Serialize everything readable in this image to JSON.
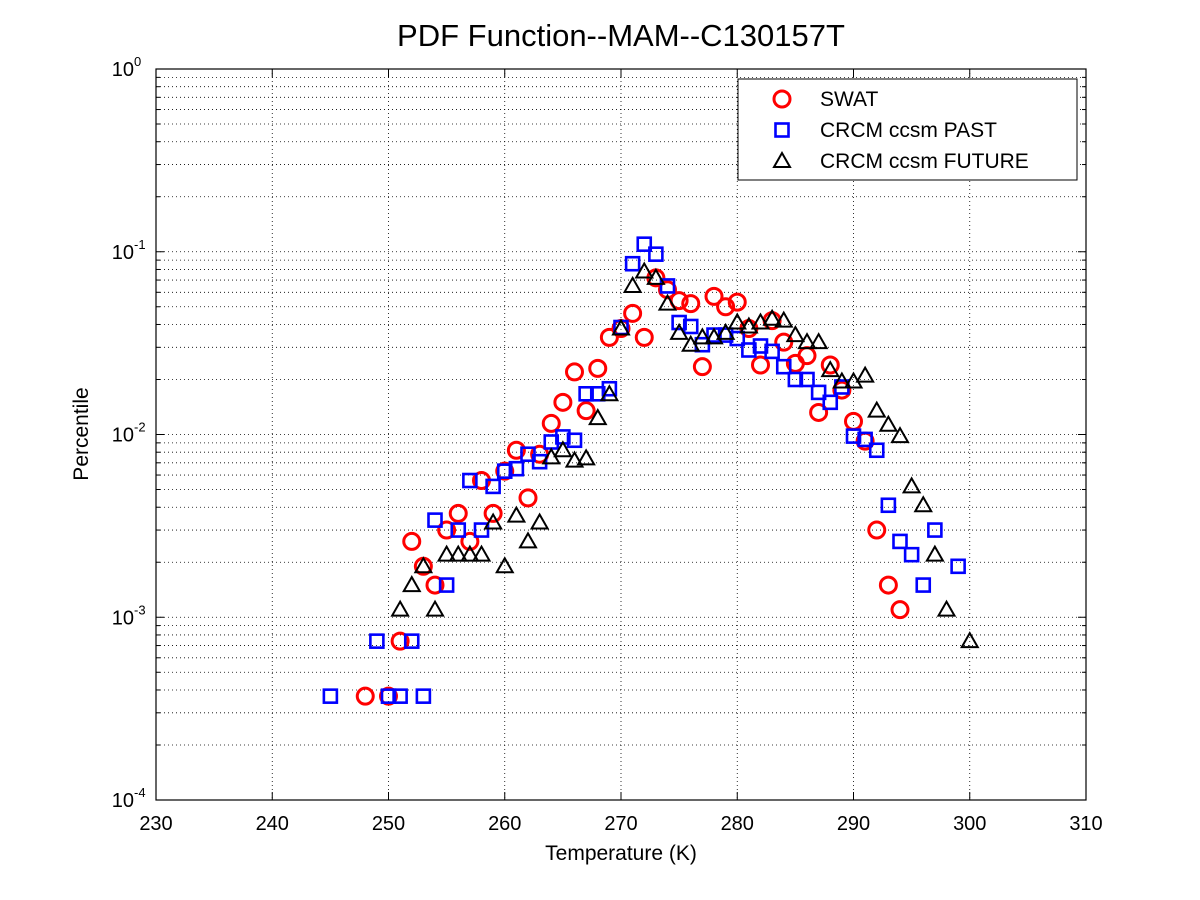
{
  "chart_data": {
    "type": "scatter",
    "title": "PDF Function--MAM--C130157T",
    "xlabel": "Temperature (K)",
    "ylabel": "Percentile",
    "xlim": [
      230,
      310
    ],
    "ylim": [
      0.0001,
      1
    ],
    "yscale": "log",
    "grid": true,
    "legend_position": "top-right",
    "x_ticks": [
      230,
      240,
      250,
      260,
      270,
      280,
      290,
      300,
      310
    ],
    "x_tick_labels": [
      "230",
      "240",
      "250",
      "260",
      "270",
      "280",
      "290",
      "300",
      "310"
    ],
    "y_ticks": [
      {
        "value": 0.0001,
        "base": "10",
        "exp": "-4"
      },
      {
        "value": 0.001,
        "base": "10",
        "exp": "-3"
      },
      {
        "value": 0.01,
        "base": "10",
        "exp": "-2"
      },
      {
        "value": 0.1,
        "base": "10",
        "exp": "-1"
      },
      {
        "value": 1,
        "base": "10",
        "exp": "0"
      }
    ],
    "series": [
      {
        "name": "SWAT",
        "marker": "circle",
        "color": "#ff0000",
        "points": [
          [
            248,
            0.00037
          ],
          [
            250,
            0.00037
          ],
          [
            251,
            0.00074
          ],
          [
            252,
            0.0026
          ],
          [
            253,
            0.0019
          ],
          [
            254,
            0.0015
          ],
          [
            255,
            0.003
          ],
          [
            256,
            0.0037
          ],
          [
            257,
            0.0026
          ],
          [
            258,
            0.0056
          ],
          [
            259,
            0.0037
          ],
          [
            260,
            0.0063
          ],
          [
            261,
            0.0082
          ],
          [
            262,
            0.0045
          ],
          [
            263,
            0.0078
          ],
          [
            264,
            0.0115
          ],
          [
            265,
            0.015
          ],
          [
            266,
            0.022
          ],
          [
            267,
            0.0135
          ],
          [
            268,
            0.023
          ],
          [
            269,
            0.034
          ],
          [
            270,
            0.038
          ],
          [
            271,
            0.046
          ],
          [
            272,
            0.034
          ],
          [
            273,
            0.072
          ],
          [
            274,
            0.062
          ],
          [
            275,
            0.054
          ],
          [
            276,
            0.052
          ],
          [
            277,
            0.0235
          ],
          [
            278,
            0.057
          ],
          [
            279,
            0.05
          ],
          [
            280,
            0.053
          ],
          [
            281,
            0.038
          ],
          [
            282,
            0.024
          ],
          [
            283,
            0.042
          ],
          [
            284,
            0.032
          ],
          [
            285,
            0.0245
          ],
          [
            286,
            0.027
          ],
          [
            287,
            0.0132
          ],
          [
            288,
            0.024
          ],
          [
            289,
            0.0175
          ],
          [
            290,
            0.0118
          ],
          [
            291,
            0.0092
          ],
          [
            292,
            0.003
          ],
          [
            293,
            0.0015
          ],
          [
            294,
            0.0011
          ]
        ]
      },
      {
        "name": "CRCM ccsm PAST",
        "marker": "square",
        "color": "#0000ff",
        "points": [
          [
            245,
            0.00037
          ],
          [
            249,
            0.00074
          ],
          [
            250,
            0.00037
          ],
          [
            251,
            0.00037
          ],
          [
            252,
            0.00074
          ],
          [
            253,
            0.00037
          ],
          [
            254,
            0.0034
          ],
          [
            255,
            0.0015
          ],
          [
            256,
            0.003
          ],
          [
            257,
            0.0056
          ],
          [
            258,
            0.003
          ],
          [
            259,
            0.0052
          ],
          [
            260,
            0.0063
          ],
          [
            261,
            0.0065
          ],
          [
            262,
            0.0078
          ],
          [
            263,
            0.0071
          ],
          [
            264,
            0.0091
          ],
          [
            265,
            0.0097
          ],
          [
            266,
            0.0093
          ],
          [
            267,
            0.0167
          ],
          [
            268,
            0.0167
          ],
          [
            269,
            0.0178
          ],
          [
            270,
            0.0385
          ],
          [
            271,
            0.086
          ],
          [
            272,
            0.11
          ],
          [
            273,
            0.097
          ],
          [
            274,
            0.065
          ],
          [
            275,
            0.041
          ],
          [
            276,
            0.039
          ],
          [
            277,
            0.031
          ],
          [
            278,
            0.035
          ],
          [
            279,
            0.035
          ],
          [
            280,
            0.0335
          ],
          [
            281,
            0.029
          ],
          [
            282,
            0.0305
          ],
          [
            283,
            0.0285
          ],
          [
            284,
            0.0235
          ],
          [
            285,
            0.02
          ],
          [
            286,
            0.02
          ],
          [
            287,
            0.017
          ],
          [
            288,
            0.015
          ],
          [
            289,
            0.0182
          ],
          [
            290,
            0.0098
          ],
          [
            291,
            0.0094
          ],
          [
            292,
            0.0082
          ],
          [
            293,
            0.0041
          ],
          [
            294,
            0.0026
          ],
          [
            295,
            0.0022
          ],
          [
            296,
            0.0015
          ],
          [
            297,
            0.003
          ],
          [
            299,
            0.0019
          ]
        ]
      },
      {
        "name": "CRCM ccsm FUTURE",
        "marker": "triangle",
        "color": "#000000",
        "points": [
          [
            251,
            0.0011
          ],
          [
            252,
            0.0015
          ],
          [
            253,
            0.0019
          ],
          [
            254,
            0.0011
          ],
          [
            255,
            0.0022
          ],
          [
            256,
            0.0022
          ],
          [
            257,
            0.0022
          ],
          [
            258,
            0.0022
          ],
          [
            259,
            0.0033
          ],
          [
            260,
            0.0019
          ],
          [
            261,
            0.0036
          ],
          [
            262,
            0.0026
          ],
          [
            263,
            0.0033
          ],
          [
            264,
            0.0075
          ],
          [
            265,
            0.0082
          ],
          [
            266,
            0.0072
          ],
          [
            267,
            0.0074
          ],
          [
            268,
            0.0123
          ],
          [
            269,
            0.0166
          ],
          [
            270,
            0.038
          ],
          [
            271,
            0.065
          ],
          [
            272,
            0.078
          ],
          [
            273,
            0.072
          ],
          [
            274,
            0.052
          ],
          [
            275,
            0.036
          ],
          [
            276,
            0.031
          ],
          [
            277,
            0.034
          ],
          [
            278,
            0.034
          ],
          [
            279,
            0.036
          ],
          [
            280,
            0.041
          ],
          [
            281,
            0.039
          ],
          [
            282,
            0.041
          ],
          [
            283,
            0.043
          ],
          [
            284,
            0.042
          ],
          [
            285,
            0.035
          ],
          [
            286,
            0.032
          ],
          [
            287,
            0.032
          ],
          [
            288,
            0.0225
          ],
          [
            289,
            0.0195
          ],
          [
            290,
            0.0195
          ],
          [
            291,
            0.021
          ],
          [
            292,
            0.0135
          ],
          [
            293,
            0.0113
          ],
          [
            294,
            0.0098
          ],
          [
            295,
            0.0052
          ],
          [
            296,
            0.0041
          ],
          [
            297,
            0.0022
          ],
          [
            298,
            0.0011
          ],
          [
            300,
            0.00074
          ]
        ]
      }
    ]
  }
}
